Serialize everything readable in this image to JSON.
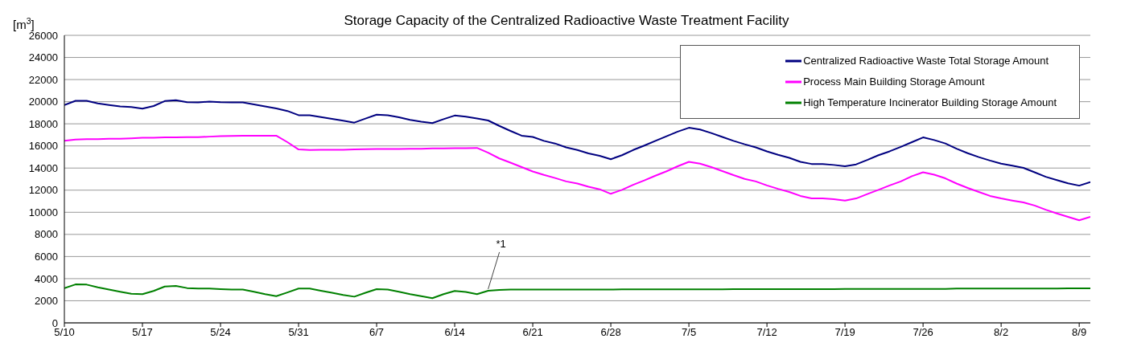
{
  "chart_data": {
    "type": "line",
    "title": "Storage Capacity of the Centralized Radioactive Waste Treatment Facility",
    "ylabel": "[m$^{3}$]",
    "x": [
      "--05-10",
      "--05-11",
      "--05-12",
      "--05-13",
      "--05-14",
      "--05-15",
      "--05-16",
      "--05-17",
      "--05-18",
      "--05-19",
      "--05-20",
      "--05-21",
      "--05-22",
      "--05-23",
      "--05-24",
      "--05-25",
      "--05-26",
      "--05-27",
      "--05-28",
      "--05-29",
      "--05-30",
      "--05-31",
      "--06-01",
      "--06-02",
      "--06-03",
      "--06-04",
      "--06-05",
      "--06-06",
      "--06-07",
      "--06-08",
      "--06-09",
      "--06-10",
      "--06-11",
      "--06-12",
      "--06-13",
      "--06-14",
      "--06-15",
      "--06-16",
      "--06-17",
      "--06-18",
      "--06-19",
      "--06-20",
      "--06-21",
      "--06-22",
      "--06-23",
      "--06-24",
      "--06-25",
      "--06-26",
      "--06-27",
      "--06-28",
      "--06-29",
      "--06-30",
      "--07-01",
      "--07-02",
      "--07-03",
      "--07-04",
      "--07-05",
      "--07-06",
      "--07-07",
      "--07-08",
      "--07-09",
      "--07-10",
      "--07-11",
      "--07-12",
      "--07-13",
      "--07-14",
      "--07-15",
      "--07-16",
      "--07-17",
      "--07-18",
      "--07-19",
      "--07-20",
      "--07-21",
      "--07-22",
      "--07-23",
      "--07-24",
      "--07-25",
      "--07-26",
      "--07-27",
      "--07-28",
      "--07-29",
      "--07-30",
      "--07-31",
      "--08-01",
      "--08-02",
      "--08-03",
      "--08-04",
      "--08-05",
      "--08-06",
      "--08-07",
      "--08-08",
      "--08-09",
      "--08-10"
    ],
    "series": [
      {
        "name": "Centralized Radioactive Waste Total Storage Amount",
        "color": "#000080",
        "values": [
          19700,
          20080,
          20080,
          19840,
          19700,
          19580,
          19510,
          19370,
          19610,
          20060,
          20130,
          19960,
          19940,
          20010,
          19960,
          19940,
          19940,
          19750,
          19580,
          19390,
          19160,
          18780,
          18780,
          18610,
          18450,
          18280,
          18110,
          18470,
          18830,
          18780,
          18590,
          18350,
          18190,
          18070,
          18420,
          18750,
          18640,
          18490,
          18300,
          17810,
          17360,
          16930,
          16810,
          16460,
          16220,
          15870,
          15630,
          15320,
          15110,
          14800,
          15160,
          15630,
          16030,
          16460,
          16880,
          17290,
          17640,
          17480,
          17170,
          16810,
          16460,
          16150,
          15870,
          15510,
          15200,
          14920,
          14560,
          14370,
          14370,
          14280,
          14160,
          14330,
          14730,
          15160,
          15510,
          15910,
          16340,
          16770,
          16530,
          16220,
          15750,
          15340,
          14990,
          14680,
          14400,
          14210,
          14020,
          13620,
          13210,
          12910,
          12620,
          12410,
          12740
        ]
      },
      {
        "name": "Process Main Building Storage Amount",
        "color": "#ff00ff",
        "values": [
          16460,
          16580,
          16620,
          16620,
          16650,
          16650,
          16690,
          16740,
          16740,
          16770,
          16770,
          16790,
          16790,
          16840,
          16880,
          16910,
          16930,
          16930,
          16930,
          16930,
          16340,
          15680,
          15630,
          15650,
          15650,
          15650,
          15680,
          15700,
          15720,
          15720,
          15720,
          15750,
          15750,
          15770,
          15770,
          15790,
          15790,
          15820,
          15390,
          14870,
          14490,
          14090,
          13690,
          13380,
          13100,
          12790,
          12600,
          12310,
          12080,
          11670,
          12030,
          12480,
          12880,
          13310,
          13710,
          14160,
          14560,
          14400,
          14090,
          13730,
          13360,
          13020,
          12790,
          12430,
          12120,
          11840,
          11480,
          11250,
          11250,
          11180,
          11060,
          11250,
          11650,
          12030,
          12430,
          12790,
          13260,
          13620,
          13400,
          13070,
          12600,
          12200,
          11840,
          11480,
          11250,
          11060,
          10890,
          10610,
          10230,
          9900,
          9590,
          9280,
          9590
        ]
      },
      {
        "name": "High Temperature Incinerator Building Storage Amount",
        "color": "#008000",
        "values": [
          3130,
          3480,
          3460,
          3220,
          3010,
          2820,
          2630,
          2600,
          2890,
          3290,
          3340,
          3150,
          3100,
          3100,
          3050,
          3010,
          3010,
          2820,
          2600,
          2420,
          2750,
          3100,
          3100,
          2910,
          2720,
          2530,
          2370,
          2720,
          3050,
          3010,
          2820,
          2600,
          2420,
          2230,
          2600,
          2890,
          2790,
          2600,
          2910,
          2980,
          3010,
          3010,
          3010,
          3010,
          3010,
          3010,
          3010,
          3010,
          3010,
          3010,
          3030,
          3030,
          3030,
          3030,
          3030,
          3030,
          3030,
          3030,
          3030,
          3030,
          3050,
          3050,
          3050,
          3050,
          3050,
          3050,
          3050,
          3050,
          3050,
          3050,
          3070,
          3070,
          3070,
          3070,
          3070,
          3070,
          3070,
          3070,
          3070,
          3070,
          3100,
          3100,
          3100,
          3100,
          3100,
          3100,
          3100,
          3100,
          3100,
          3100,
          3130,
          3130,
          3130
        ]
      }
    ],
    "xlim": [
      "--05-10",
      "--08-10"
    ],
    "xticks": [
      {
        "value": "--05-10",
        "label": "5/10"
      },
      {
        "value": "--05-17",
        "label": "5/17"
      },
      {
        "value": "--05-24",
        "label": "5/24"
      },
      {
        "value": "--05-31",
        "label": "5/31"
      },
      {
        "value": "--06-07",
        "label": "6/7"
      },
      {
        "value": "--06-14",
        "label": "6/14"
      },
      {
        "value": "--06-21",
        "label": "6/21"
      },
      {
        "value": "--06-28",
        "label": "6/28"
      },
      {
        "value": "--07-05",
        "label": "7/5"
      },
      {
        "value": "--07-12",
        "label": "7/12"
      },
      {
        "value": "--07-19",
        "label": "7/19"
      },
      {
        "value": "--07-26",
        "label": "7/26"
      },
      {
        "value": "--08-02",
        "label": "8/2"
      },
      {
        "value": "--08-09",
        "label": "8/9"
      }
    ],
    "ylim": [
      0,
      26000
    ],
    "yticks": [
      0,
      2000,
      4000,
      6000,
      8000,
      10000,
      12000,
      14000,
      16000,
      18000,
      20000,
      22000,
      24000,
      26000
    ],
    "grid": "y",
    "legend": "top right",
    "marker": "none",
    "line_style": "solid",
    "annotations": [
      {
        "text": "*1",
        "x": "--06-17",
        "y": 2910
      }
    ]
  }
}
